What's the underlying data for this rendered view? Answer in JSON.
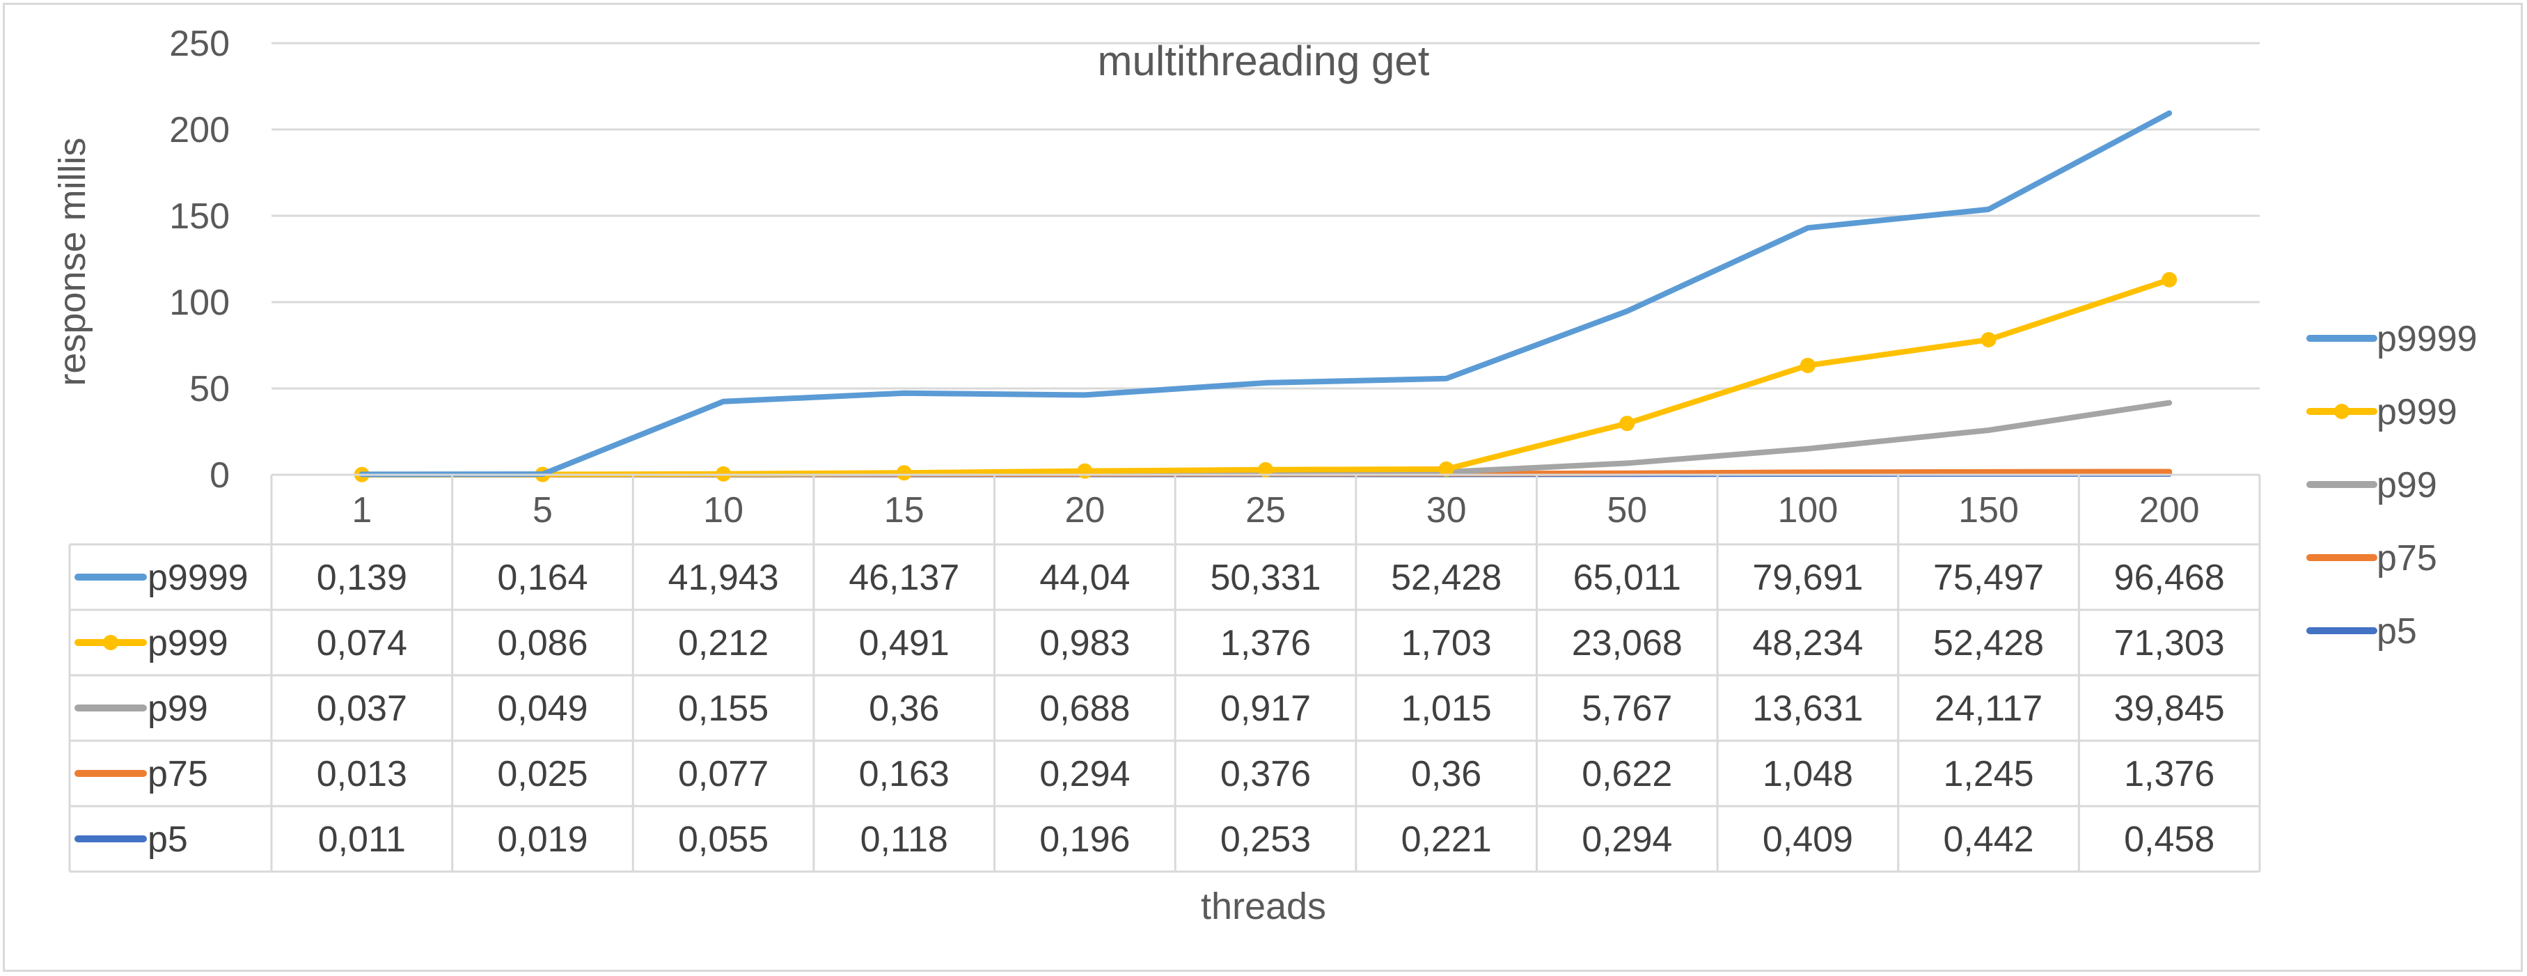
{
  "chart_data": {
    "type": "line",
    "title": "multithreading get",
    "xlabel": "threads",
    "ylabel": "response millis",
    "ylim": [
      0,
      250
    ],
    "yticks": [
      0,
      50,
      100,
      150,
      200,
      250
    ],
    "grid": true,
    "legend_position": "right",
    "has_data_table": true,
    "categories": [
      "1",
      "5",
      "10",
      "15",
      "20",
      "25",
      "30",
      "50",
      "100",
      "150",
      "200"
    ],
    "series": [
      {
        "name": "p9999",
        "color": "#5b9bd5",
        "marker": "none",
        "values": [
          0.139,
          0.164,
          41.943,
          46.137,
          44.04,
          50.331,
          52.428,
          65.011,
          79.691,
          75.497,
          96.468
        ],
        "labels": [
          "0,139",
          "0,164",
          "41,943",
          "46,137",
          "44,04",
          "50,331",
          "52,428",
          "65,011",
          "79,691",
          "75,497",
          "96,468"
        ]
      },
      {
        "name": "p999",
        "color": "#ffc000",
        "marker": "circle",
        "values": [
          0.074,
          0.086,
          0.212,
          0.491,
          0.983,
          1.376,
          1.703,
          23.068,
          48.234,
          52.428,
          71.303
        ],
        "labels": [
          "0,074",
          "0,086",
          "0,212",
          "0,491",
          "0,983",
          "1,376",
          "1,703",
          "23,068",
          "48,234",
          "52,428",
          "71,303"
        ]
      },
      {
        "name": "p99",
        "color": "#a5a5a5",
        "marker": "none",
        "values": [
          0.037,
          0.049,
          0.155,
          0.36,
          0.688,
          0.917,
          1.015,
          5.767,
          13.631,
          24.117,
          39.845
        ],
        "labels": [
          "0,037",
          "0,049",
          "0,155",
          "0,36",
          "0,688",
          "0,917",
          "1,015",
          "5,767",
          "13,631",
          "24,117",
          "39,845"
        ]
      },
      {
        "name": "p75",
        "color": "#ed7d31",
        "marker": "none",
        "values": [
          0.013,
          0.025,
          0.077,
          0.163,
          0.294,
          0.376,
          0.36,
          0.622,
          1.048,
          1.245,
          1.376
        ],
        "labels": [
          "0,013",
          "0,025",
          "0,077",
          "0,163",
          "0,294",
          "0,376",
          "0,36",
          "0,622",
          "1,048",
          "1,245",
          "1,376"
        ]
      },
      {
        "name": "p5",
        "color": "#4472c4",
        "marker": "none",
        "values": [
          0.011,
          0.019,
          0.055,
          0.118,
          0.196,
          0.253,
          0.221,
          0.294,
          0.409,
          0.442,
          0.458
        ],
        "labels": [
          "0,011",
          "0,019",
          "0,055",
          "0,118",
          "0,196",
          "0,253",
          "0,221",
          "0,294",
          "0,409",
          "0,442",
          "0,458"
        ]
      }
    ],
    "plotted_totals_note_free": true
  }
}
